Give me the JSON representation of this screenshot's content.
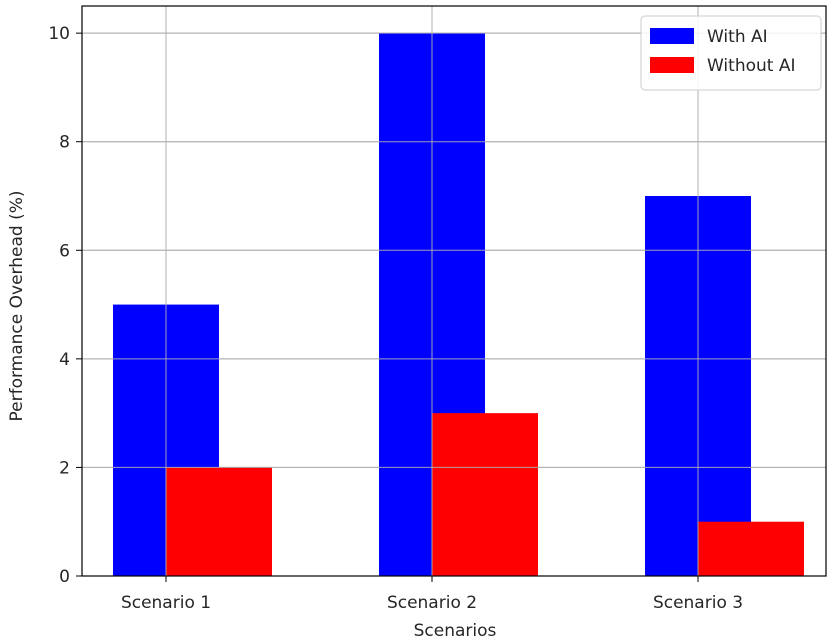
{
  "chart_data": {
    "type": "bar",
    "categories": [
      "Scenario 1",
      "Scenario 2",
      "Scenario 3"
    ],
    "series": [
      {
        "name": "With AI",
        "values": [
          5,
          10,
          7
        ],
        "color": "#0000ff"
      },
      {
        "name": "Without AI",
        "values": [
          2,
          3,
          1
        ],
        "color": "#ff0000"
      }
    ],
    "xlabel": "Scenarios",
    "ylabel": "Performance Overhead (%)",
    "ylim": [
      0,
      10.5
    ],
    "yticks": [
      0,
      2,
      4,
      6,
      8,
      10
    ],
    "grid": true,
    "legend": "top-right"
  }
}
